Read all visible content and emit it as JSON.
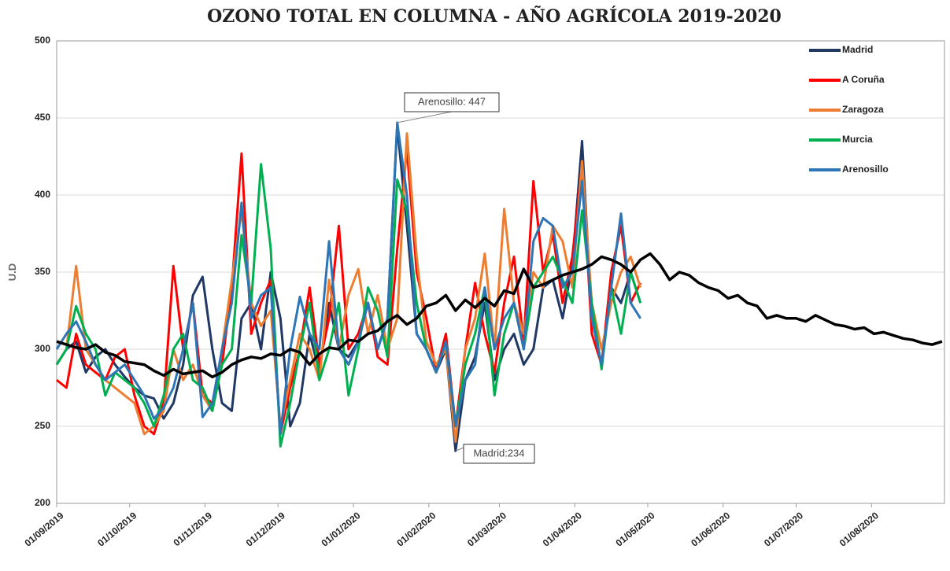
{
  "chart_data": {
    "type": "line",
    "title": "OZONO TOTAL EN COLUMNA - AÑO AGRÍCOLA 2019-2020",
    "y_label": "U.D",
    "xlim": [
      "01/09/2019",
      "31/08/2020"
    ],
    "xticks": [
      "01/09/2019",
      "01/10/2019",
      "01/11/2019",
      "01/12/2019",
      "01/01/2020",
      "01/02/2020",
      "01/03/2020",
      "01/04/2020",
      "01/05/2020",
      "01/06/2020",
      "01/07/2020",
      "01/08/2020"
    ],
    "ylim": [
      200,
      500
    ],
    "yticks": [
      200,
      250,
      300,
      350,
      400,
      450,
      500
    ],
    "grid": true,
    "legend": "upper right",
    "x": [
      "01/09/2019",
      "05/09/2019",
      "09/09/2019",
      "13/09/2019",
      "17/09/2019",
      "21/09/2019",
      "25/09/2019",
      "29/09/2019",
      "03/10/2019",
      "07/10/2019",
      "11/10/2019",
      "15/10/2019",
      "19/10/2019",
      "23/10/2019",
      "27/10/2019",
      "31/10/2019",
      "04/11/2019",
      "08/11/2019",
      "12/11/2019",
      "16/11/2019",
      "20/11/2019",
      "24/11/2019",
      "28/11/2019",
      "02/12/2019",
      "06/12/2019",
      "10/12/2019",
      "14/12/2019",
      "18/12/2019",
      "22/12/2019",
      "26/12/2019",
      "30/12/2019",
      "03/01/2020",
      "07/01/2020",
      "11/01/2020",
      "15/01/2020",
      "19/01/2020",
      "23/01/2020",
      "27/01/2020",
      "31/01/2020",
      "04/02/2020",
      "08/02/2020",
      "12/02/2020",
      "16/02/2020",
      "20/02/2020",
      "24/02/2020",
      "28/02/2020",
      "03/03/2020",
      "07/03/2020",
      "11/03/2020",
      "15/03/2020",
      "19/03/2020",
      "23/03/2020",
      "27/03/2020",
      "31/03/2020",
      "04/04/2020",
      "08/04/2020",
      "12/04/2020",
      "16/04/2020",
      "20/04/2020",
      "24/04/2020",
      "28/04/2020",
      "02/05/2020",
      "06/05/2020",
      "10/05/2020",
      "14/05/2020",
      "18/05/2020",
      "22/05/2020",
      "26/05/2020",
      "30/05/2020",
      "03/06/2020",
      "07/06/2020",
      "11/06/2020",
      "15/06/2020",
      "19/06/2020",
      "23/06/2020",
      "27/06/2020",
      "01/07/2020",
      "05/07/2020",
      "09/07/2020",
      "13/07/2020",
      "17/07/2020",
      "21/07/2020",
      "25/07/2020",
      "29/07/2020",
      "02/08/2020",
      "06/08/2020",
      "10/08/2020",
      "14/08/2020",
      "18/08/2020",
      "22/08/2020",
      "26/08/2020",
      "30/08/2020"
    ],
    "series": [
      {
        "name": "Madrid",
        "color": "#1f3864",
        "values": [
          290,
          300,
          305,
          285,
          295,
          300,
          290,
          282,
          275,
          270,
          268,
          255,
          265,
          290,
          335,
          347,
          300,
          265,
          260,
          320,
          330,
          300,
          350,
          320,
          250,
          265,
          310,
          285,
          330,
          300,
          295,
          305,
          330,
          300,
          320,
          445,
          380,
          310,
          300,
          285,
          300,
          234,
          280,
          295,
          330,
          280,
          300,
          310,
          290,
          300,
          340,
          345,
          320,
          355,
          435,
          320,
          290,
          340,
          330,
          350,
          330,
          null,
          null,
          null,
          null,
          null,
          null,
          null,
          null,
          null,
          null,
          null,
          null,
          null,
          null,
          null,
          null,
          null,
          null,
          null,
          null,
          null,
          null,
          null,
          null,
          null,
          null,
          null,
          null,
          null,
          null,
          null
        ]
      },
      {
        "name": "A Coruña",
        "color": "#ff0000",
        "values": [
          280,
          275,
          310,
          290,
          285,
          280,
          295,
          300,
          270,
          250,
          245,
          265,
          354,
          300,
          330,
          270,
          265,
          290,
          340,
          427,
          310,
          330,
          345,
          245,
          275,
          300,
          340,
          290,
          320,
          380,
          300,
          310,
          330,
          295,
          290,
          365,
          430,
          350,
          320,
          285,
          310,
          250,
          300,
          343,
          310,
          285,
          330,
          360,
          305,
          409,
          350,
          375,
          330,
          360,
          420,
          310,
          290,
          350,
          380,
          330,
          343,
          null,
          null,
          null,
          null,
          null,
          null,
          null,
          null,
          null,
          null,
          null,
          null,
          null,
          null,
          null,
          null,
          null,
          null,
          null,
          null,
          null,
          null,
          null,
          null,
          null,
          null,
          null,
          null,
          null,
          null,
          null
        ]
      },
      {
        "name": "Zaragoza",
        "color": "#ed7d31",
        "values": [
          290,
          300,
          354,
          300,
          290,
          280,
          275,
          270,
          265,
          245,
          250,
          260,
          300,
          280,
          290,
          270,
          260,
          300,
          345,
          390,
          330,
          315,
          325,
          250,
          280,
          310,
          300,
          280,
          345,
          300,
          335,
          352,
          310,
          335,
          300,
          320,
          440,
          360,
          305,
          290,
          300,
          240,
          300,
          320,
          362,
          300,
          391,
          330,
          310,
          350,
          340,
          380,
          370,
          340,
          422,
          330,
          300,
          330,
          350,
          360,
          340,
          null,
          null,
          null,
          null,
          null,
          null,
          null,
          null,
          null,
          null,
          null,
          null,
          null,
          null,
          null,
          null,
          null,
          null,
          null,
          null,
          null,
          null,
          null,
          null,
          null,
          null,
          null,
          null,
          null,
          null,
          null
        ]
      },
      {
        "name": "Murcia",
        "color": "#00b050",
        "values": [
          290,
          300,
          328,
          310,
          300,
          270,
          285,
          280,
          275,
          265,
          250,
          270,
          300,
          310,
          280,
          275,
          260,
          290,
          300,
          374,
          330,
          420,
          365,
          237,
          265,
          300,
          330,
          280,
          300,
          330,
          270,
          300,
          340,
          325,
          295,
          410,
          390,
          330,
          300,
          285,
          305,
          250,
          290,
          310,
          340,
          270,
          310,
          330,
          300,
          340,
          350,
          360,
          345,
          330,
          390,
          330,
          287,
          340,
          310,
          350,
          330,
          null,
          null,
          null,
          null,
          null,
          null,
          null,
          null,
          null,
          null,
          null,
          null,
          null,
          null,
          null,
          null,
          null,
          null,
          null,
          null,
          null,
          null,
          null,
          null,
          null,
          null,
          null,
          null,
          null,
          null,
          null
        ]
      },
      {
        "name": "Arenosillo",
        "color": "#2e75b6",
        "values": [
          300,
          310,
          318,
          305,
          290,
          280,
          285,
          290,
          280,
          270,
          255,
          262,
          275,
          300,
          330,
          256,
          265,
          300,
          330,
          395,
          320,
          335,
          340,
          245,
          300,
          334,
          310,
          300,
          370,
          300,
          290,
          305,
          330,
          300,
          320,
          447,
          400,
          310,
          300,
          285,
          305,
          250,
          280,
          290,
          340,
          300,
          320,
          330,
          300,
          370,
          385,
          380,
          340,
          350,
          409,
          320,
          290,
          340,
          388,
          330,
          320,
          null,
          null,
          null,
          null,
          null,
          null,
          null,
          null,
          null,
          null,
          null,
          null,
          null,
          null,
          null,
          null,
          null,
          null,
          null,
          null,
          null,
          null,
          null,
          null,
          null,
          null,
          null,
          null,
          null,
          null,
          null
        ]
      },
      {
        "color": "#000000",
        "values": [
          305,
          303,
          301,
          300,
          303,
          298,
          296,
          292,
          291,
          290,
          286,
          283,
          287,
          284,
          285,
          286,
          282,
          285,
          290,
          293,
          295,
          294,
          297,
          296,
          300,
          298,
          290,
          297,
          301,
          300,
          306,
          305,
          310,
          312,
          318,
          322,
          316,
          320,
          328,
          330,
          335,
          325,
          332,
          327,
          333,
          328,
          338,
          336,
          352,
          340,
          342,
          345,
          348,
          350,
          352,
          355,
          360,
          358,
          355,
          350,
          358,
          362,
          355,
          345,
          350,
          348,
          343,
          340,
          338,
          333,
          335,
          330,
          328,
          320,
          322,
          320,
          320,
          318,
          322,
          319,
          316,
          315,
          313,
          314,
          310,
          311,
          309,
          307,
          306,
          304,
          303,
          305
        ]
      }
    ],
    "annotations": [
      {
        "text": "Arenosillo: 447"
      },
      {
        "text": "Madrid:234"
      }
    ]
  }
}
